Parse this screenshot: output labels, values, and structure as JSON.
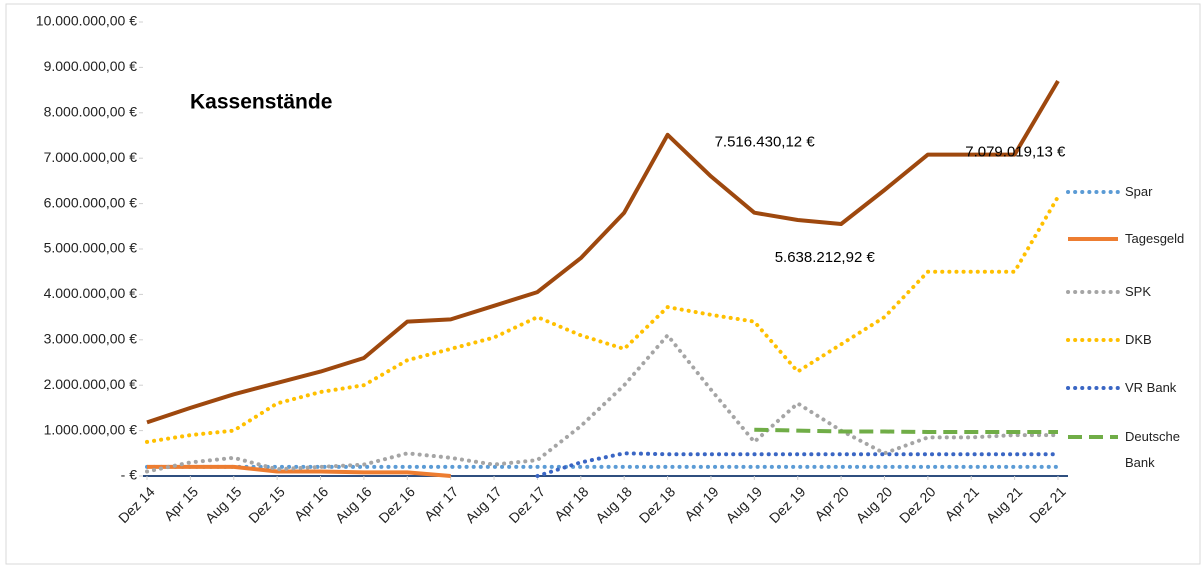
{
  "chart_data": {
    "type": "line",
    "title": "Kassenstände",
    "categories": [
      "Dez 14",
      "Apr 15",
      "Aug 15",
      "Dez 15",
      "Apr 16",
      "Aug 16",
      "Dez 16",
      "Apr 17",
      "Aug 17",
      "Dez 17",
      "Apr 18",
      "Aug 18",
      "Dez 18",
      "Apr 19",
      "Aug 19",
      "Dez 19",
      "Apr 20",
      "Aug 20",
      "Dez 20",
      "Apr 21",
      "Aug 21",
      "Dez 21"
    ],
    "ylim": [
      0,
      10000000
    ],
    "yticks": [
      {
        "value": 0,
        "label": "-  €"
      },
      {
        "value": 1000000,
        "label": "1.000.000,00 €"
      },
      {
        "value": 2000000,
        "label": "2.000.000,00 €"
      },
      {
        "value": 3000000,
        "label": "3.000.000,00 €"
      },
      {
        "value": 4000000,
        "label": "4.000.000,00 €"
      },
      {
        "value": 5000000,
        "label": "5.000.000,00 €"
      },
      {
        "value": 6000000,
        "label": "6.000.000,00 €"
      },
      {
        "value": 7000000,
        "label": "7.000.000,00 €"
      },
      {
        "value": 8000000,
        "label": "8.000.000,00 €"
      },
      {
        "value": 9000000,
        "label": "9.000.000,00 €"
      },
      {
        "value": 10000000,
        "label": "10.000.000,00 €"
      }
    ],
    "grid": false,
    "legend": "right",
    "series": [
      {
        "name": "Spar",
        "color": "#5B9BD5",
        "style": "dotted",
        "values": [
          200000,
          200000,
          200000,
          200000,
          200000,
          200000,
          200000,
          200000,
          200000,
          200000,
          200000,
          200000,
          200000,
          200000,
          200000,
          200000,
          200000,
          200000,
          200000,
          200000,
          200000,
          200000
        ]
      },
      {
        "name": "Tagesgeld",
        "color": "#ED7D31",
        "style": "solid",
        "values": [
          200000,
          200000,
          200000,
          100000,
          100000,
          80000,
          80000,
          0,
          null,
          null,
          null,
          null,
          null,
          null,
          null,
          null,
          null,
          null,
          null,
          null,
          null,
          null
        ]
      },
      {
        "name": "SPK",
        "color": "#A5A5A5",
        "style": "dotted",
        "values": [
          100000,
          300000,
          400000,
          150000,
          200000,
          250000,
          500000,
          400000,
          250000,
          350000,
          1100000,
          2000000,
          3100000,
          1900000,
          750000,
          1600000,
          1000000,
          500000,
          850000,
          850000,
          900000,
          900000
        ]
      },
      {
        "name": "DKB",
        "color": "#FFC000",
        "style": "dotted",
        "values": [
          750000,
          900000,
          1000000,
          1600000,
          1850000,
          2000000,
          2550000,
          2800000,
          3050000,
          3500000,
          3100000,
          2800000,
          3720000,
          3550000,
          3400000,
          2300000,
          2900000,
          3500000,
          4500000,
          4500000,
          4500000,
          6150000
        ]
      },
      {
        "name": "VR Bank",
        "color": "#3A66C4",
        "style": "dotted",
        "values": [
          null,
          null,
          null,
          null,
          null,
          null,
          null,
          null,
          null,
          0,
          300000,
          500000,
          480000,
          480000,
          480000,
          480000,
          480000,
          480000,
          480000,
          480000,
          480000,
          480000
        ]
      },
      {
        "name": "Deutsche Bank",
        "color": "#70AD47",
        "style": "dashed",
        "values": [
          null,
          null,
          null,
          null,
          null,
          null,
          null,
          null,
          null,
          null,
          null,
          null,
          null,
          null,
          1020000,
          1000000,
          980000,
          980000,
          970000,
          970000,
          970000,
          970000
        ]
      },
      {
        "color": "#9E480E",
        "style": "solid",
        "values": [
          1180000,
          1500000,
          1800000,
          2050000,
          2300000,
          2600000,
          3400000,
          3450000,
          3750000,
          4050000,
          4800000,
          5800000,
          7516430.12,
          6600000,
          5800000,
          5638212.92,
          5550000,
          6300000,
          7079019.13,
          7079019.13,
          7079019.13,
          8700000
        ],
        "value_labels": [
          null,
          null,
          null,
          null,
          null,
          null,
          null,
          null,
          null,
          null,
          null,
          null,
          "7.516.430,12 €",
          null,
          null,
          "5.638.212,92 €",
          null,
          null,
          null,
          "7.079.019,13 €",
          null,
          null
        ]
      }
    ]
  }
}
